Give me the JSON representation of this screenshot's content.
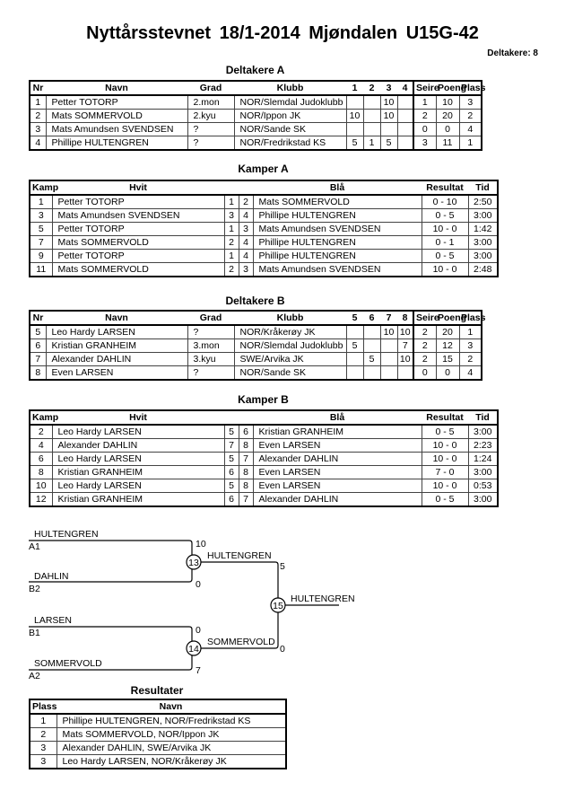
{
  "title": "Nyttårsstevnet  18/1-2014  Mjøndalen   U15G-42",
  "participants_count": "Deltakere: 8",
  "deltakere_a": {
    "heading": "Deltakere A",
    "headers": [
      "Nr",
      "Navn",
      "Grad",
      "Klubb",
      "1",
      "2",
      "3",
      "4",
      "Seire",
      "Poeng",
      "Plass"
    ],
    "rows": [
      [
        "1",
        "Petter TOTORP",
        "2.mon",
        "NOR/Slemdal Judoklubb",
        "",
        "",
        "10",
        "",
        "1",
        "10",
        "3"
      ],
      [
        "2",
        "Mats SOMMERVOLD",
        "2.kyu",
        "NOR/Ippon JK",
        "10",
        "",
        "10",
        "",
        "2",
        "20",
        "2"
      ],
      [
        "3",
        "Mats Amundsen SVENDSEN",
        "?",
        "NOR/Sande SK",
        "",
        "",
        "",
        "",
        "0",
        "0",
        "4"
      ],
      [
        "4",
        "Phillipe HULTENGREN",
        "?",
        "NOR/Fredrikstad KS",
        "5",
        "1",
        "5",
        "",
        "3",
        "11",
        "1"
      ]
    ]
  },
  "kamper_a": {
    "heading": "Kamper A",
    "headers": [
      "Kamp",
      "Hvit",
      "",
      "",
      "Blå",
      "Resultat",
      "Tid"
    ],
    "rows": [
      [
        "1",
        "Petter TOTORP",
        "1",
        "2",
        "Mats SOMMERVOLD",
        "0 - 10",
        "2:50"
      ],
      [
        "3",
        "Mats Amundsen SVENDSEN",
        "3",
        "4",
        "Phillipe HULTENGREN",
        "0 - 5",
        "3:00"
      ],
      [
        "5",
        "Petter TOTORP",
        "1",
        "3",
        "Mats Amundsen SVENDSEN",
        "10 - 0",
        "1:42"
      ],
      [
        "7",
        "Mats SOMMERVOLD",
        "2",
        "4",
        "Phillipe HULTENGREN",
        "0 - 1",
        "3:00"
      ],
      [
        "9",
        "Petter TOTORP",
        "1",
        "4",
        "Phillipe HULTENGREN",
        "0 - 5",
        "3:00"
      ],
      [
        "11",
        "Mats SOMMERVOLD",
        "2",
        "3",
        "Mats Amundsen SVENDSEN",
        "10 - 0",
        "2:48"
      ]
    ]
  },
  "deltakere_b": {
    "heading": "Deltakere B",
    "headers": [
      "Nr",
      "Navn",
      "Grad",
      "Klubb",
      "5",
      "6",
      "7",
      "8",
      "Seire",
      "Poeng",
      "Plass"
    ],
    "rows": [
      [
        "5",
        "Leo Hardy LARSEN",
        "?",
        "NOR/Kråkerøy JK",
        "",
        "",
        "10",
        "10",
        "2",
        "20",
        "1"
      ],
      [
        "6",
        "Kristian GRANHEIM",
        "3.mon",
        "NOR/Slemdal Judoklubb",
        "5",
        "",
        "",
        "7",
        "2",
        "12",
        "3"
      ],
      [
        "7",
        "Alexander DAHLIN",
        "3.kyu",
        "SWE/Arvika JK",
        "",
        "5",
        "",
        "10",
        "2",
        "15",
        "2"
      ],
      [
        "8",
        "Even LARSEN",
        "?",
        "NOR/Sande SK",
        "",
        "",
        "",
        "",
        "0",
        "0",
        "4"
      ]
    ]
  },
  "kamper_b": {
    "heading": "Kamper B",
    "headers": [
      "Kamp",
      "Hvit",
      "",
      "",
      "Blå",
      "Resultat",
      "Tid"
    ],
    "rows": [
      [
        "2",
        "Leo Hardy LARSEN",
        "5",
        "6",
        "Kristian GRANHEIM",
        "0 - 5",
        "3:00"
      ],
      [
        "4",
        "Alexander DAHLIN",
        "7",
        "8",
        "Even LARSEN",
        "10 - 0",
        "2:23"
      ],
      [
        "6",
        "Leo Hardy LARSEN",
        "5",
        "7",
        "Alexander DAHLIN",
        "10 - 0",
        "1:24"
      ],
      [
        "8",
        "Kristian GRANHEIM",
        "6",
        "8",
        "Even LARSEN",
        "7 - 0",
        "3:00"
      ],
      [
        "10",
        "Leo Hardy LARSEN",
        "5",
        "8",
        "Even LARSEN",
        "10 - 0",
        "0:53"
      ],
      [
        "12",
        "Kristian GRANHEIM",
        "6",
        "7",
        "Alexander DAHLIN",
        "0 - 5",
        "3:00"
      ]
    ]
  },
  "bracket": {
    "a1": "HULTENGREN",
    "a1_seed": "A1",
    "b2": "DAHLIN",
    "b2_seed": "B2",
    "b1": "LARSEN",
    "b1_seed": "B1",
    "a2": "SOMMERVOLD",
    "a2_seed": "A2",
    "m13": "13",
    "m14": "14",
    "m15": "15",
    "m13_winner": "HULTENGREN",
    "m14_winner": "SOMMERVOLD",
    "final_winner": "HULTENGREN",
    "s_a1": "10",
    "s_b2": "0",
    "s_b1": "0",
    "s_a2": "7",
    "s_13": "5",
    "s_14": "0"
  },
  "resultater": {
    "heading": "Resultater",
    "headers": [
      "Plass",
      "Navn"
    ],
    "rows": [
      [
        "1",
        "Phillipe HULTENGREN, NOR/Fredrikstad KS"
      ],
      [
        "2",
        "Mats SOMMERVOLD, NOR/Ippon JK"
      ],
      [
        "3",
        "Alexander DAHLIN, SWE/Arvika JK"
      ],
      [
        "3",
        "Leo Hardy LARSEN, NOR/Kråkerøy JK"
      ]
    ]
  }
}
